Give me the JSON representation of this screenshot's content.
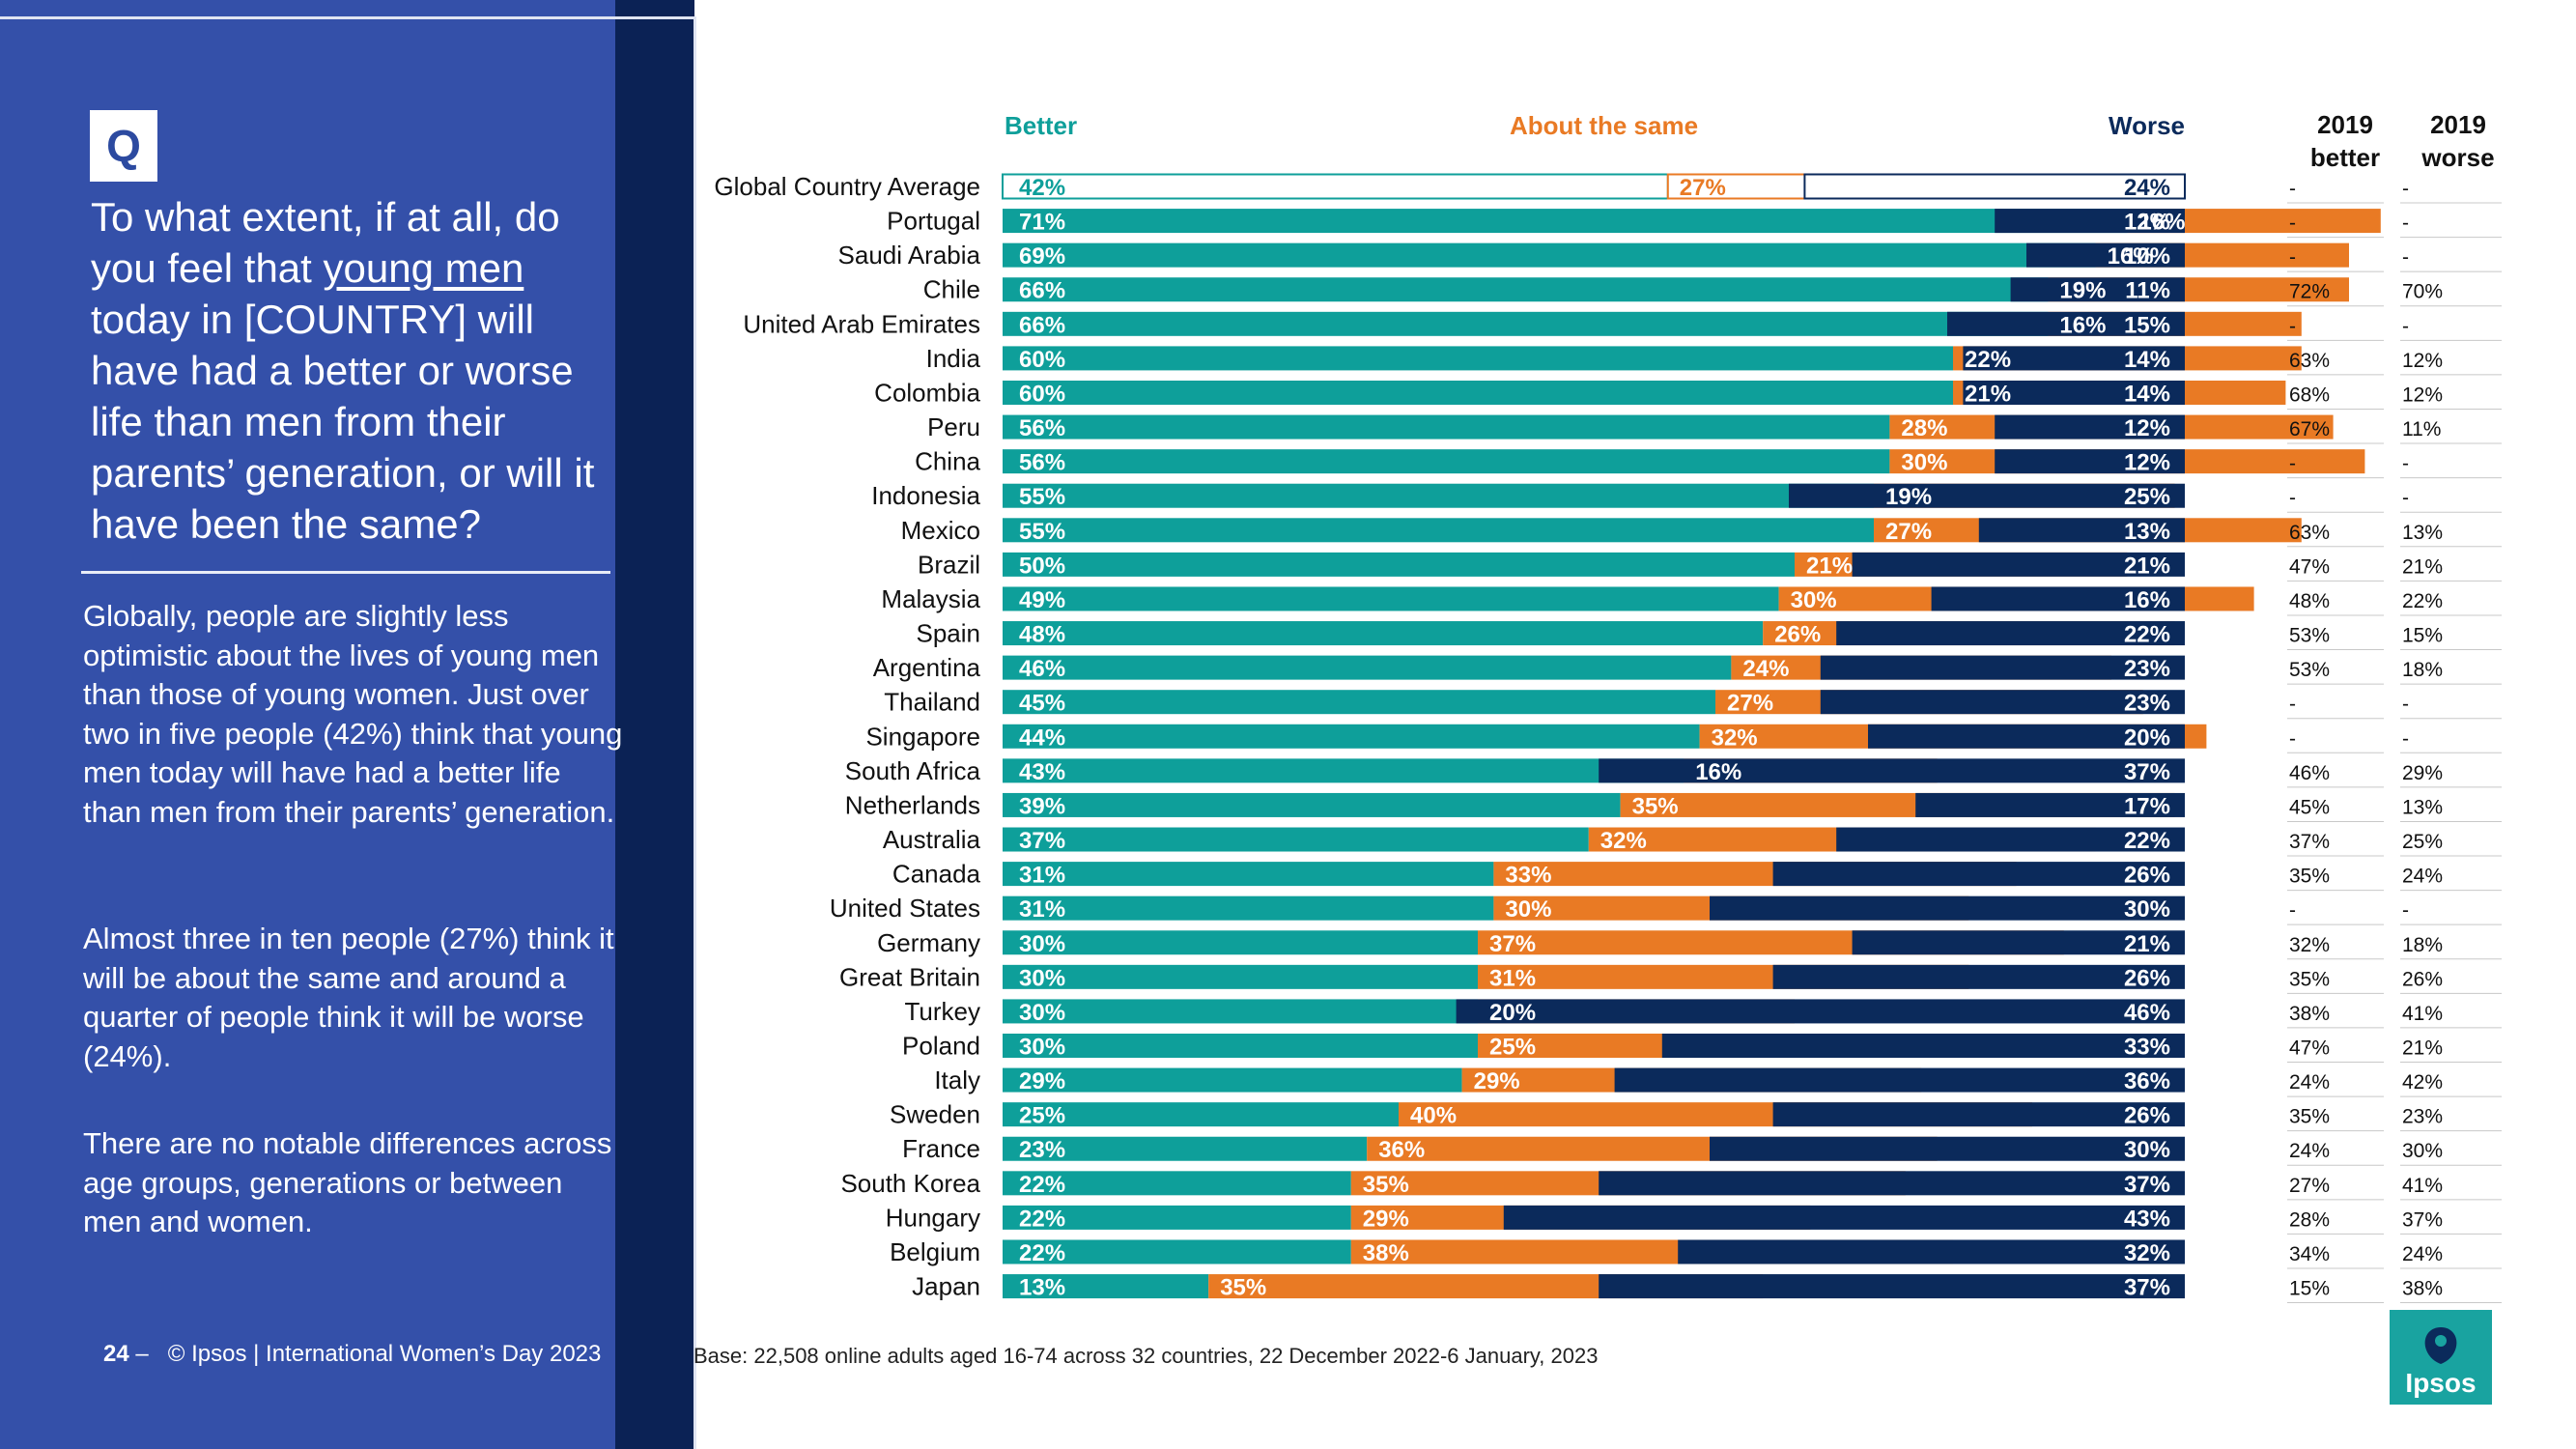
{
  "left": {
    "q_label": "Q",
    "question_pre": "To what extent, if at all, do you feel that ",
    "question_link": "young men",
    "question_post": " today in [COUNTRY] will have had a better or worse life than men from their parents’ generation, or will it have been the same?",
    "para1": "Globally, people are slightly less optimistic about the lives of young men than those of young women. Just over two in five people (42%) think that young men today will have had a better life than men from their parents’ generation.",
    "para2": "Almost three in ten people (27%) think it will be about the same and around a quarter of people think it will be worse (24%).",
    "para3": "There are no notable differences across age groups, generations or between men and women."
  },
  "footer": {
    "page": "24",
    "dash": "–",
    "text": "© Ipsos | International Women’s Day 2023"
  },
  "base_note": "Base: 22,508 online adults aged 16-74 across 32 countries, 22 December 2022-6 January, 2023",
  "logo_text": "Ipsos",
  "colors": {
    "better": "#0e9f9a",
    "same": "#e97a24",
    "worse": "#0b2a5b",
    "panel": "#3450a9"
  },
  "table": {
    "header_better_line1": "2019",
    "header_better_line2": "better",
    "header_worse_line1": "2019",
    "header_worse_line2": "worse"
  },
  "chart_data": {
    "type": "bar",
    "subtype": "diverging-stacked-horizontal",
    "legend": {
      "better": "Better",
      "same": "About the same",
      "worse": "Worse"
    },
    "unit": "%",
    "categories": [
      "Global Country Average",
      "Portugal",
      "Saudi Arabia",
      "Chile",
      "United Arab Emirates",
      "India",
      "Colombia",
      "Peru",
      "China",
      "Indonesia",
      "Mexico",
      "Brazil",
      "Malaysia",
      "Spain",
      "Argentina",
      "Thailand",
      "Singapore",
      "South Africa",
      "Netherlands",
      "Australia",
      "Canada",
      "United States",
      "Germany",
      "Great Britain",
      "Turkey",
      "Poland",
      "Italy",
      "Sweden",
      "France",
      "South Korea",
      "Hungary",
      "Belgium",
      "Japan"
    ],
    "series": [
      {
        "name": "Better",
        "values": [
          42,
          71,
          69,
          66,
          66,
          60,
          60,
          56,
          56,
          55,
          55,
          50,
          49,
          48,
          46,
          45,
          44,
          43,
          39,
          37,
          31,
          31,
          30,
          30,
          30,
          30,
          29,
          25,
          23,
          22,
          22,
          22,
          13
        ]
      },
      {
        "name": "About the same",
        "values": [
          27,
          16,
          16,
          19,
          16,
          22,
          21,
          28,
          30,
          19,
          27,
          21,
          30,
          26,
          24,
          27,
          32,
          16,
          35,
          32,
          33,
          30,
          37,
          31,
          20,
          25,
          29,
          40,
          36,
          35,
          29,
          38,
          35
        ]
      },
      {
        "name": "Worse",
        "values": [
          24,
          12,
          10,
          11,
          15,
          14,
          14,
          12,
          12,
          25,
          13,
          21,
          16,
          22,
          23,
          23,
          20,
          37,
          17,
          22,
          26,
          30,
          21,
          26,
          46,
          33,
          36,
          26,
          30,
          37,
          43,
          32,
          37
        ]
      }
    ],
    "labels": {
      "better": [
        "42%",
        "71%",
        "69%",
        "66%",
        "66%",
        "60%",
        "60%",
        "56%",
        "56%",
        "55%",
        "55%",
        "50%",
        "49%",
        "48%",
        "46%",
        "45%",
        "44%",
        "43%",
        "39%",
        "37%",
        "31%",
        "31%",
        "30%",
        "30%",
        "30%",
        "30%",
        "29%",
        "25%",
        "23%",
        "22%",
        "22%",
        "22%",
        "13%"
      ],
      "same": [
        "27%",
        "16%",
        "16%",
        "19%",
        "16%",
        "22%",
        "21%",
        "28%",
        "30%",
        "19%",
        "27%",
        "21%",
        "30%",
        "26%",
        "24%",
        "27%",
        "32%",
        "16%",
        "35%",
        "32%",
        "33%",
        "30%",
        "37%",
        "31%",
        "20%",
        "25%",
        "29%",
        "40%",
        "36%",
        "35%",
        "29%",
        "38%",
        "35%"
      ],
      "worse": [
        "24%",
        "12%",
        "10%",
        "11%",
        "15%",
        "14%",
        "14%",
        "12%",
        "12%",
        "25%",
        "13%",
        "21%",
        "16%",
        "22%",
        "23%",
        "23%",
        "20%",
        "37%",
        "17%",
        "22%",
        "26%",
        "30%",
        "21%",
        "26%",
        "46%",
        "33%",
        "36%",
        "26%",
        "30%",
        "37%",
        "43%",
        "32%",
        "37%"
      ]
    },
    "table_2019_better": [
      "-",
      "-",
      "-",
      "72%",
      "-",
      "63%",
      "68%",
      "67%",
      "-",
      "-",
      "63%",
      "47%",
      "48%",
      "53%",
      "53%",
      "-",
      "-",
      "46%",
      "45%",
      "37%",
      "35%",
      "-",
      "32%",
      "35%",
      "38%",
      "47%",
      "24%",
      "35%",
      "24%",
      "27%",
      "28%",
      "34%",
      "15%"
    ],
    "table_2019_worse": [
      "-",
      "-",
      "-",
      "70%",
      "-",
      "12%",
      "12%",
      "11%",
      "-",
      "-",
      "13%",
      "21%",
      "22%",
      "15%",
      "18%",
      "-",
      "-",
      "29%",
      "13%",
      "25%",
      "24%",
      "-",
      "18%",
      "26%",
      "41%",
      "21%",
      "42%",
      "23%",
      "30%",
      "41%",
      "37%",
      "24%",
      "38%"
    ]
  }
}
